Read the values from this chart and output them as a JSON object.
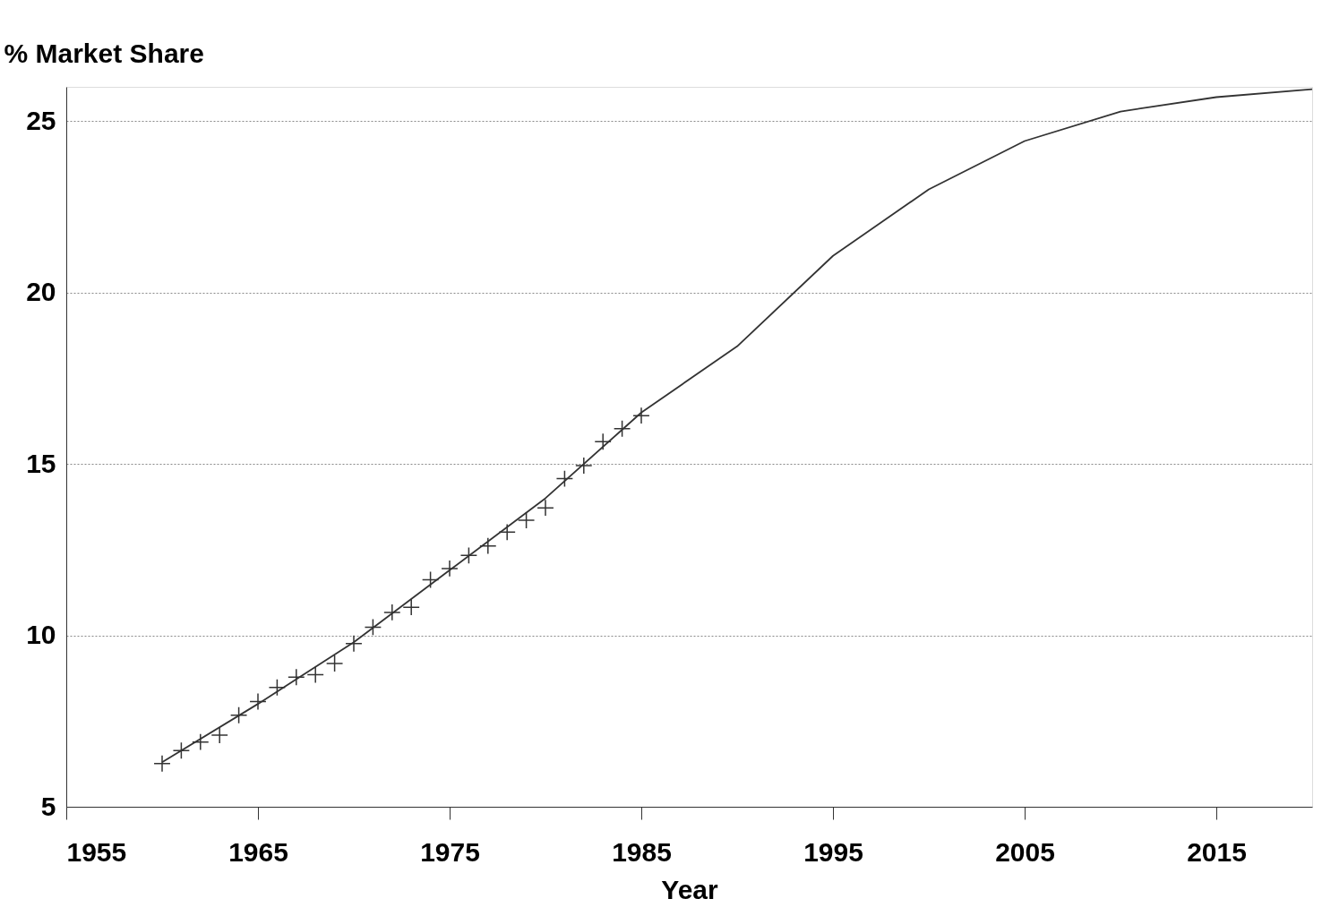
{
  "chart_data": {
    "type": "line",
    "ylabel": "% Market Share",
    "xlabel": "Year",
    "xlim": [
      1955,
      2020
    ],
    "xticks": [
      1955,
      1965,
      1975,
      1985,
      1995,
      2005,
      2015
    ],
    "ylim": [
      5,
      26
    ],
    "yticks": [
      5,
      10,
      15,
      20,
      25
    ],
    "grid": "y",
    "series": [
      {
        "type": "scatter",
        "marker": "cross",
        "color": "#333333",
        "x": [
          1960,
          1961,
          1962,
          1963,
          1964,
          1965,
          1966,
          1967,
          1968,
          1969,
          1970,
          1971,
          1972,
          1973,
          1974,
          1975,
          1976,
          1977,
          1978,
          1979,
          1980,
          1981,
          1982,
          1983,
          1984,
          1985
        ],
        "values": [
          6.26,
          6.64,
          6.89,
          7.09,
          7.67,
          8.07,
          8.48,
          8.78,
          8.85,
          9.18,
          9.76,
          10.24,
          10.67,
          10.82,
          11.62,
          11.95,
          12.33,
          12.61,
          13.01,
          13.36,
          13.72,
          14.57,
          14.95,
          15.65,
          16.03,
          16.41
        ]
      },
      {
        "marker": "none",
        "line_style": "solid",
        "color": "#333333",
        "x": [
          1960,
          1965,
          1970,
          1975,
          1980,
          1985,
          1990,
          1995,
          2000,
          2005,
          2010,
          2015,
          2020
        ],
        "values": [
          6.3,
          8.0,
          9.8,
          11.9,
          14.0,
          16.5,
          18.43,
          21.07,
          23.01,
          24.42,
          25.28,
          25.7,
          25.93
        ]
      }
    ]
  }
}
